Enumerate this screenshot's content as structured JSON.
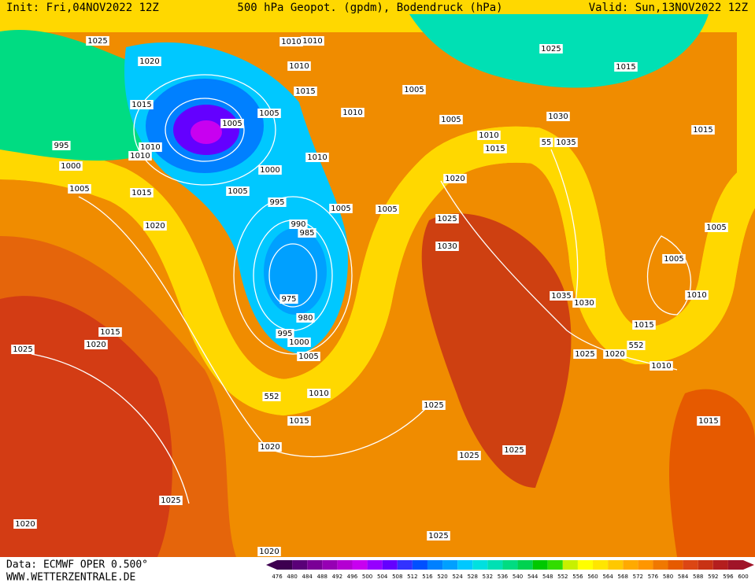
{
  "header": {
    "init": "Init: Fri,04NOV2022 12Z",
    "title": "500 hPa Geopot. (gpdm), Bodendruck (hPa)",
    "valid": "Valid: Sun,13NOV2022 12Z"
  },
  "footer": {
    "source": "Data: ECMWF OPER 0.500°",
    "site": "WWW.WETTERZENTRALE.DE"
  },
  "isobar_labels": [
    "1025",
    "1020",
    "1015",
    "995",
    "1010",
    "1010",
    "1000",
    "1005",
    "1015",
    "1020",
    "1015",
    "1020",
    "1025",
    "1025",
    "1020",
    "1020",
    "1010",
    "1010",
    "1010",
    "1015",
    "1005",
    "1005",
    "1010",
    "1010",
    "1000",
    "1005",
    "995",
    "1005",
    "990",
    "985",
    "975",
    "980",
    "995",
    "1000",
    "1005",
    "1010",
    "1015",
    "1020",
    "1005",
    "1005",
    "1005",
    "1025",
    "1015",
    "1030",
    "1010",
    "1015",
    "1035",
    "1020",
    "1025",
    "1030",
    "1035",
    "1030",
    "1015",
    "1005",
    "1005",
    "1010",
    "1015",
    "1025",
    "1020",
    "1010",
    "1025",
    "1025",
    "1025",
    "1015",
    "1025",
    "552",
    "552",
    "55"
  ],
  "colorbar": {
    "ticks": [
      476,
      480,
      484,
      488,
      492,
      496,
      500,
      504,
      508,
      512,
      516,
      520,
      524,
      528,
      532,
      536,
      540,
      544,
      548,
      552,
      556,
      560,
      564,
      568,
      572,
      576,
      580,
      584,
      588,
      592,
      596,
      600
    ],
    "colors": [
      "#3d0050",
      "#5a0078",
      "#7a0096",
      "#9600b4",
      "#b400d2",
      "#c800f0",
      "#9600ff",
      "#6400ff",
      "#3232ff",
      "#0050ff",
      "#0080ff",
      "#00a0ff",
      "#00c8ff",
      "#00e0e0",
      "#00e0b4",
      "#00dc82",
      "#00d250",
      "#00c800",
      "#32dc00",
      "#c8f000",
      "#ffff00",
      "#ffe600",
      "#ffc800",
      "#ffaa00",
      "#ff9600",
      "#f07800",
      "#e65a00",
      "#dc4614",
      "#c83214",
      "#b41e1e",
      "#a01428"
    ]
  }
}
